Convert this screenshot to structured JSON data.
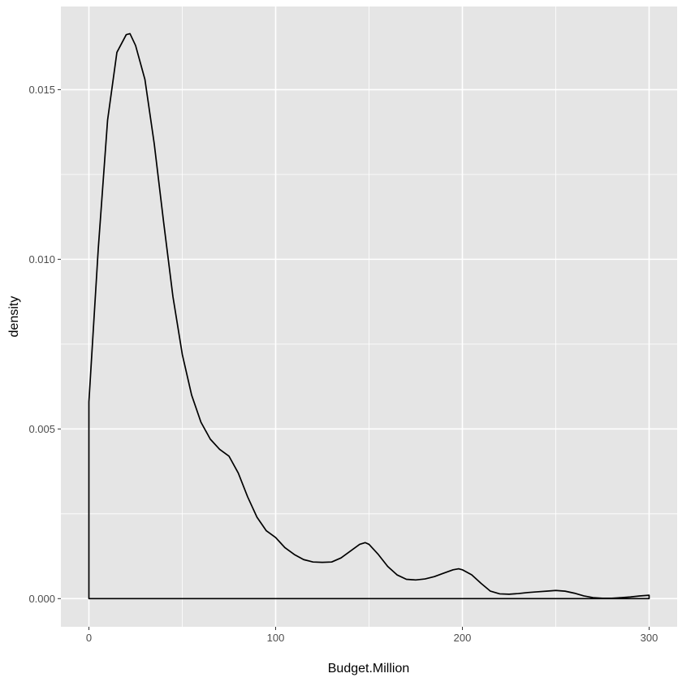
{
  "chart_data": {
    "type": "area",
    "subtype": "density",
    "title": "",
    "xlabel": "Budget.Million",
    "ylabel": "density",
    "xlim": [
      -15,
      315
    ],
    "ylim": [
      -0.00083,
      0.01745
    ],
    "x_ticks": [
      0,
      100,
      200,
      300
    ],
    "x_tick_labels": [
      "0",
      "100",
      "200",
      "300"
    ],
    "x_minor_ticks": [
      50,
      150,
      250
    ],
    "y_ticks": [
      0.0,
      0.005,
      0.01,
      0.015
    ],
    "y_tick_labels": [
      "0.000",
      "0.005",
      "0.010",
      "0.015"
    ],
    "y_minor_ticks": [
      0.0025,
      0.0075,
      0.0125
    ],
    "grid": true,
    "panel_background": "#e5e5e5",
    "grid_color": "#ffffff",
    "line_color": "#000000",
    "fill": "none",
    "series": [
      {
        "x": [
          0,
          5,
          10,
          15,
          20,
          22,
          25,
          30,
          35,
          40,
          45,
          50,
          55,
          60,
          65,
          70,
          75,
          80,
          85,
          90,
          95,
          100,
          105,
          110,
          115,
          120,
          125,
          130,
          135,
          140,
          145,
          148,
          150,
          155,
          160,
          165,
          170,
          175,
          180,
          185,
          190,
          195,
          198,
          200,
          205,
          210,
          215,
          220,
          225,
          230,
          235,
          240,
          245,
          250,
          255,
          260,
          265,
          270,
          275,
          280,
          285,
          290,
          295,
          300
        ],
        "y": [
          0.0058,
          0.0103,
          0.0141,
          0.0161,
          0.01662,
          0.01665,
          0.0163,
          0.0153,
          0.0134,
          0.0111,
          0.0089,
          0.0072,
          0.006,
          0.0052,
          0.0047,
          0.0044,
          0.0042,
          0.0037,
          0.003,
          0.0024,
          0.002,
          0.0018,
          0.0015,
          0.0013,
          0.00115,
          0.00108,
          0.00107,
          0.00108,
          0.0012,
          0.0014,
          0.0016,
          0.00165,
          0.0016,
          0.0013,
          0.00095,
          0.0007,
          0.00057,
          0.00055,
          0.00058,
          0.00065,
          0.00075,
          0.00085,
          0.00088,
          0.00085,
          0.0007,
          0.00045,
          0.00022,
          0.00014,
          0.00013,
          0.00015,
          0.00018,
          0.0002,
          0.00022,
          0.00024,
          0.00022,
          0.00016,
          8e-05,
          3e-05,
          1e-05,
          1e-05,
          3e-05,
          5e-05,
          8e-05,
          0.0001
        ]
      }
    ]
  }
}
